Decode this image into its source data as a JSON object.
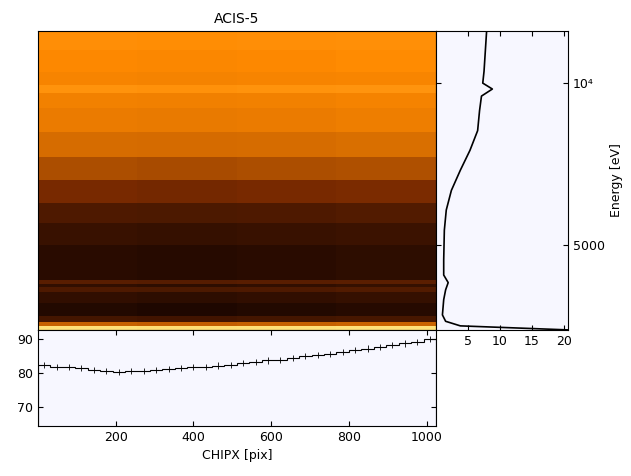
{
  "chart_data": [
    {
      "type": "heatmap",
      "title": "ACIS-5",
      "tick_labels": false,
      "log": "y",
      "x_edges": [
        0,
        256,
        512,
        768,
        1024
      ],
      "y_edges": [
        3480,
        3540,
        3600,
        3700,
        3900,
        4100,
        4180,
        4230,
        4300,
        4500,
        5000,
        5500,
        6000,
        6600,
        7300,
        8100,
        9000,
        9600,
        9900,
        10500,
        11500,
        12500
      ],
      "cells": [
        [
          18.5,
          18.0,
          18.2,
          18.8
        ],
        [
          5.2,
          5.0,
          5.1,
          5.3
        ],
        [
          1.6,
          1.55,
          1.6,
          1.65
        ],
        [
          1.1,
          1.05,
          1.1,
          1.15
        ],
        [
          1.3,
          1.25,
          1.3,
          1.35
        ],
        [
          1.8,
          1.75,
          1.8,
          1.85
        ],
        [
          1.3,
          1.25,
          1.3,
          1.35
        ],
        [
          2.0,
          1.95,
          2.0,
          2.05
        ],
        [
          1.2,
          1.15,
          1.2,
          1.25
        ],
        [
          1.2,
          1.15,
          1.2,
          1.25
        ],
        [
          1.4,
          1.35,
          1.4,
          1.45
        ],
        [
          1.8,
          1.75,
          1.8,
          1.85
        ],
        [
          2.8,
          2.7,
          2.8,
          2.9
        ],
        [
          4.2,
          4.1,
          4.2,
          4.3
        ],
        [
          5.8,
          5.7,
          5.8,
          5.9
        ],
        [
          6.8,
          6.7,
          6.8,
          6.9
        ],
        [
          7.2,
          7.1,
          7.2,
          7.3
        ],
        [
          8.6,
          8.5,
          8.6,
          8.7
        ],
        [
          7.4,
          7.3,
          7.4,
          7.5
        ],
        [
          7.8,
          7.7,
          7.8,
          7.9
        ],
        [
          8.2,
          8.1,
          8.2,
          8.3
        ]
      ],
      "xlim": [
        0,
        1024
      ],
      "ylim": [
        3480,
        12500
      ]
    },
    {
      "type": "line",
      "orientation": "horizontal",
      "log": "y",
      "y_label": "Energy [eV]",
      "y": [
        3480,
        3540,
        3610,
        3710,
        3960,
        4130,
        4260,
        4400,
        4690,
        5000,
        5330,
        5810,
        6320,
        6890,
        7500,
        8160,
        8890,
        9460,
        9750,
        10000,
        10520,
        11460,
        12480
      ],
      "values": [
        20.5,
        3.8,
        1.5,
        1.0,
        1.2,
        1.5,
        1.9,
        1.2,
        1.2,
        1.25,
        1.3,
        1.6,
        2.4,
        3.8,
        5.3,
        6.5,
        6.8,
        7.1,
        8.8,
        7.3,
        7.5,
        7.7,
        7.9
      ],
      "xlim": [
        0,
        20.6
      ],
      "xticks": [
        5,
        10,
        15,
        20
      ],
      "ylim": [
        3480,
        12500
      ],
      "yticks": [
        5000,
        {
          "value": 10000,
          "label": "10⁴"
        }
      ]
    },
    {
      "type": "histogram",
      "x_label": "CHIPX [pix]",
      "bins": [
        0,
        32,
        64,
        96,
        128,
        160,
        192,
        224,
        256,
        288,
        320,
        352,
        384,
        416,
        448,
        480,
        512,
        544,
        576,
        608,
        640,
        672,
        704,
        736,
        768,
        800,
        832,
        864,
        896,
        928,
        960,
        992,
        1024
      ],
      "counts": [
        82.5,
        82.0,
        81.8,
        81.5,
        81.0,
        80.8,
        80.5,
        80.6,
        80.8,
        81.0,
        81.3,
        81.5,
        81.8,
        82.0,
        82.3,
        82.5,
        83.0,
        83.3,
        83.8,
        84.0,
        84.5,
        85.0,
        85.3,
        85.8,
        86.3,
        86.8,
        87.3,
        87.8,
        88.3,
        88.8,
        89.3,
        90.0
      ],
      "errors": [
        0.9,
        0.9,
        0.9,
        0.9,
        0.9,
        0.9,
        0.9,
        0.9,
        0.9,
        0.9,
        0.9,
        0.9,
        0.9,
        0.9,
        0.9,
        0.9,
        0.9,
        0.9,
        0.9,
        0.9,
        0.9,
        0.9,
        0.9,
        0.9,
        0.9,
        0.9,
        0.9,
        0.9,
        0.9,
        0.9,
        0.9,
        0.9
      ],
      "xlim": [
        0,
        1024
      ],
      "ylim": [
        64.5,
        92.8
      ],
      "xticks": [
        200,
        400,
        600,
        800,
        1000
      ],
      "yticks": [
        70,
        80,
        90
      ]
    }
  ]
}
